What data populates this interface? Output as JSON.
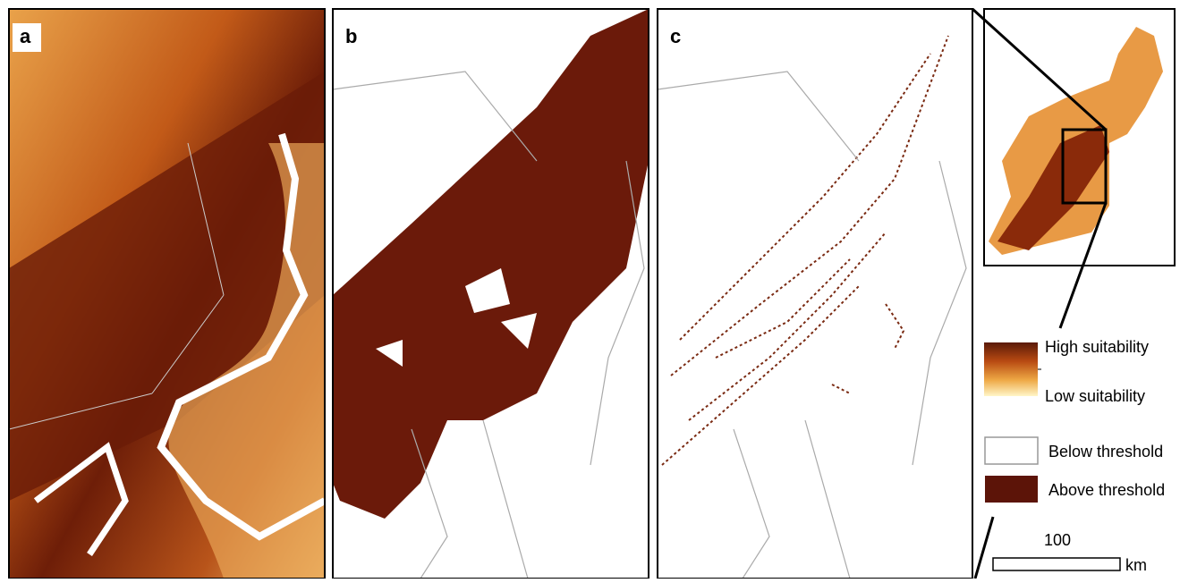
{
  "panels": [
    {
      "label": "a"
    },
    {
      "label": "b"
    },
    {
      "label": "c"
    }
  ],
  "legend": {
    "gradient_high": "High suitability",
    "gradient_low": "Low suitability",
    "below": "Below threshold",
    "above": "Above threshold"
  },
  "scale_bar": {
    "distance": "100",
    "unit": "km"
  }
}
